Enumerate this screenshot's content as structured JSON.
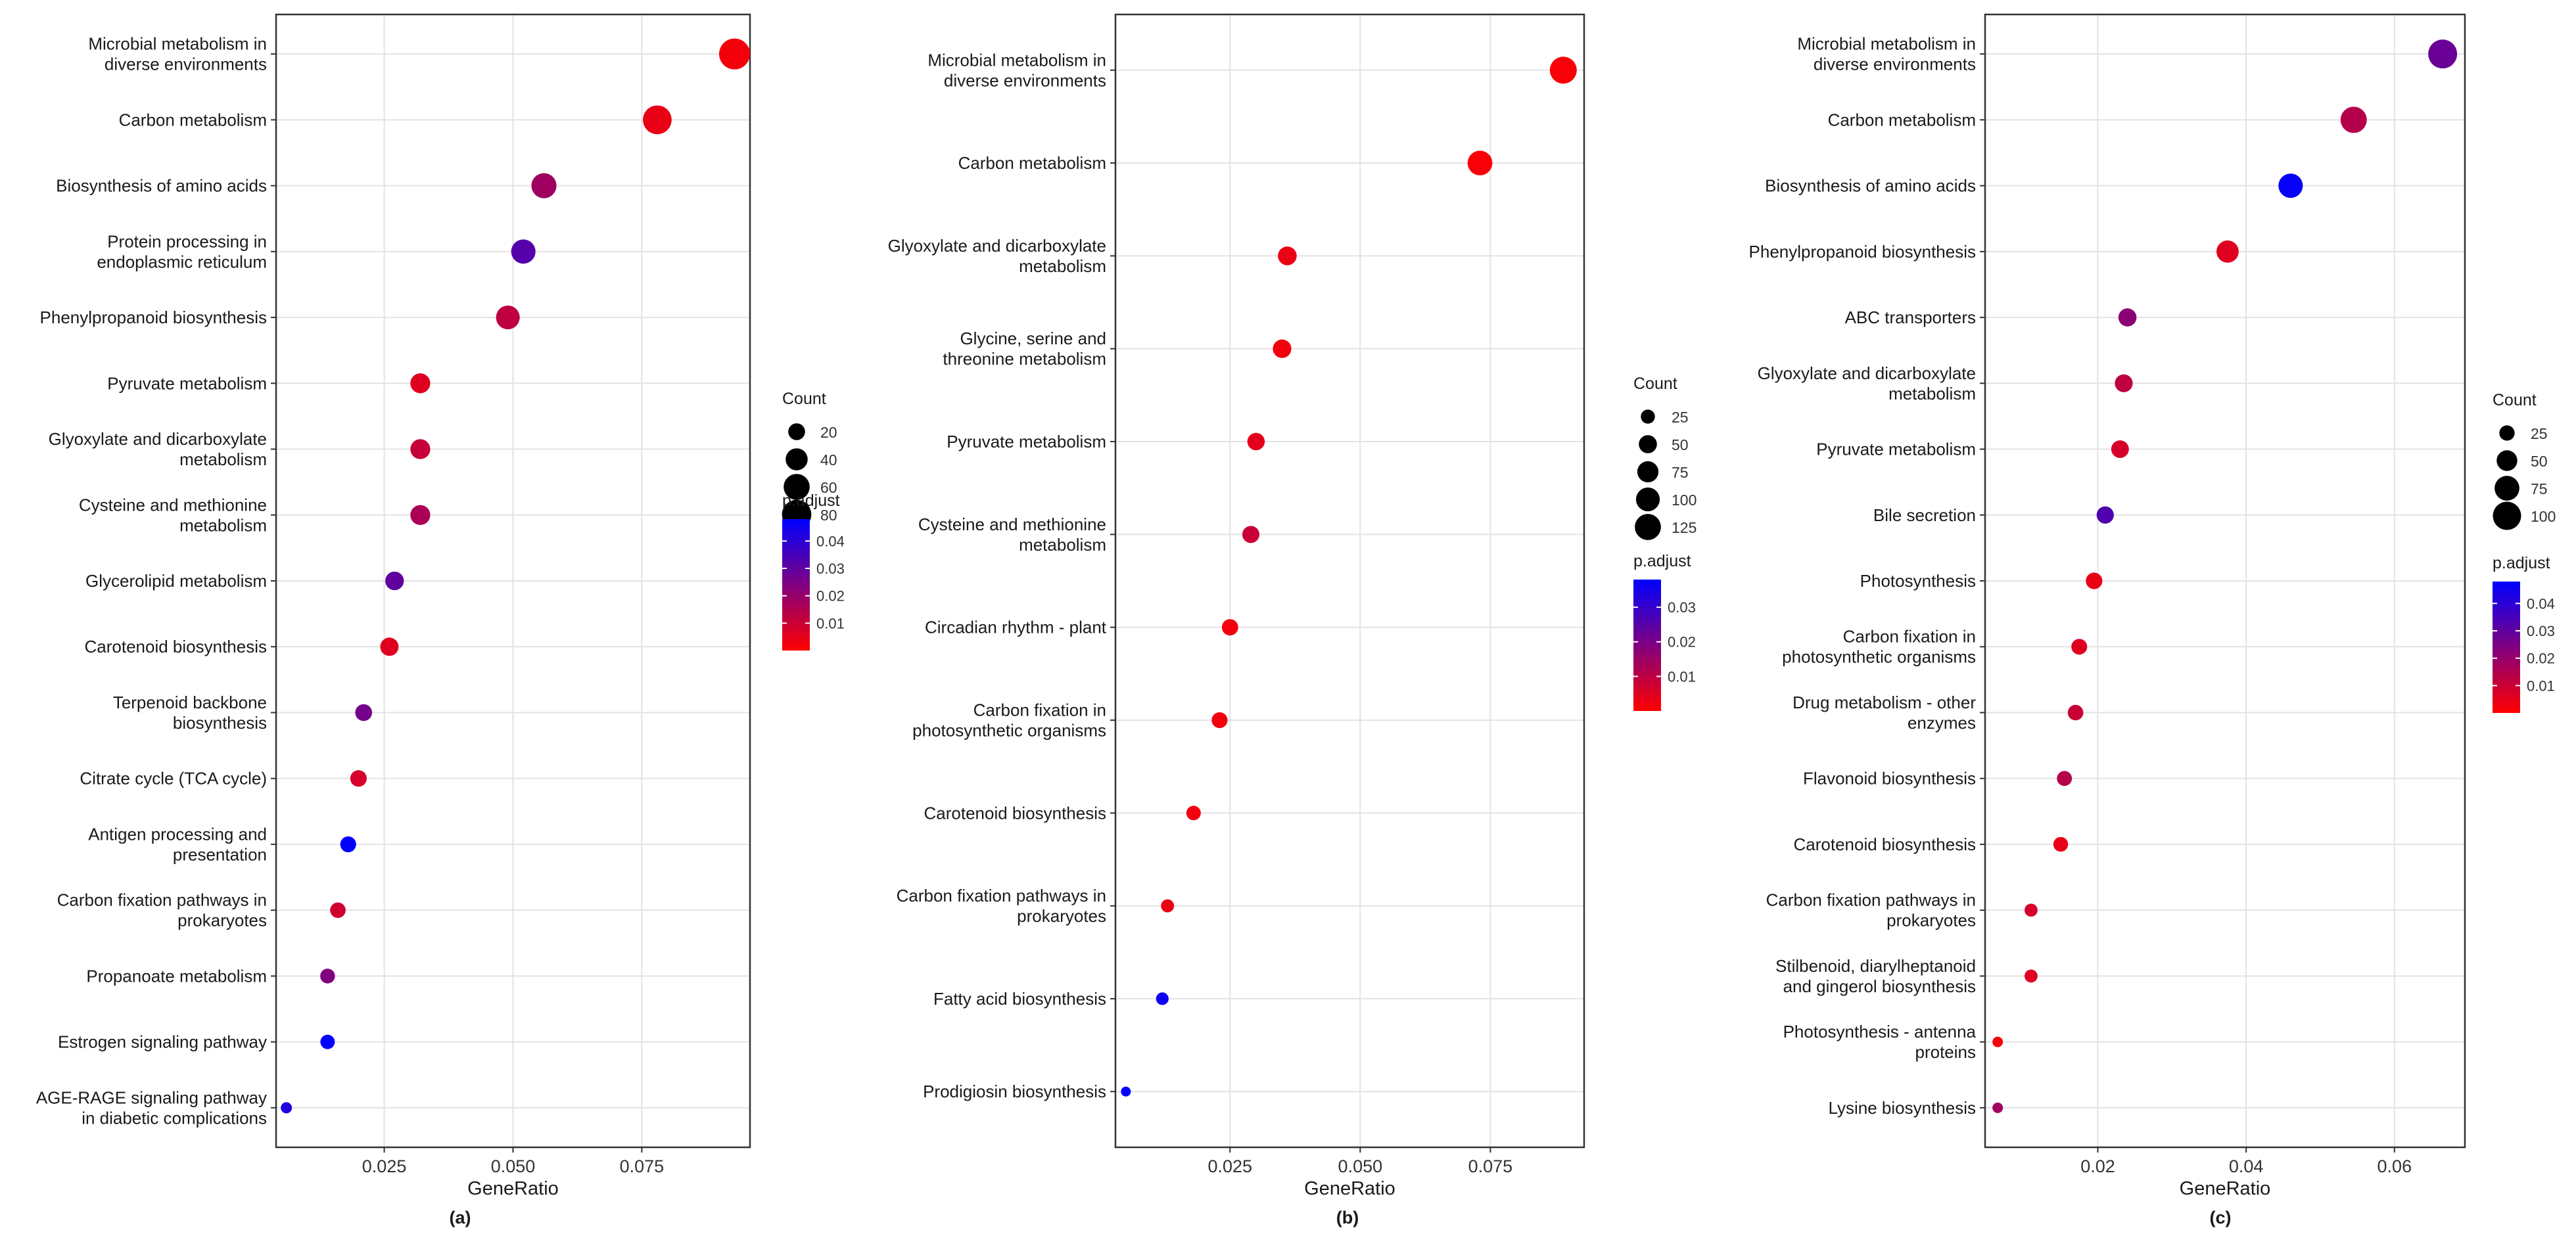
{
  "chart_data": [
    {
      "type": "scatter",
      "panel_label": "(a)",
      "xlabel": "GeneRatio",
      "ylabel": "",
      "xlim": [
        0.004,
        0.096
      ],
      "xticks": [
        0.025,
        0.05,
        0.075
      ],
      "xtick_labels": [
        "0.025",
        "0.050",
        "0.075"
      ],
      "categories": [
        "Microbial metabolism in\ndiverse environments",
        "Carbon metabolism",
        "Biosynthesis of amino acids",
        "Protein processing in\nendoplasmic reticulum",
        "Phenylpropanoid biosynthesis",
        "Pyruvate metabolism",
        "Glyoxylate and dicarboxylate\nmetabolism",
        "Cysteine and methionine\nmetabolism",
        "Glycerolipid metabolism",
        "Carotenoid biosynthesis",
        "Terpenoid backbone\nbiosynthesis",
        "Citrate cycle (TCA cycle)",
        "Antigen processing and\npresentation",
        "Carbon fixation pathways in\nprokaryotes",
        "Propanoate metabolism",
        "Estrogen signaling pathway",
        "AGE-RAGE signaling pathway\nin diabetic complications"
      ],
      "gene_ratio": [
        0.093,
        0.078,
        0.056,
        0.052,
        0.049,
        0.032,
        0.032,
        0.032,
        0.027,
        0.026,
        0.021,
        0.02,
        0.018,
        0.016,
        0.014,
        0.014,
        0.006
      ],
      "count": [
        90,
        76,
        55,
        51,
        48,
        31,
        31,
        31,
        26,
        25,
        20,
        19,
        17,
        16,
        14,
        13,
        6
      ],
      "p_adjust": [
        0.002,
        0.004,
        0.018,
        0.032,
        0.012,
        0.006,
        0.011,
        0.016,
        0.03,
        0.006,
        0.026,
        0.008,
        0.048,
        0.009,
        0.024,
        0.048,
        0.042
      ],
      "size_legend": {
        "title": "Count",
        "values": [
          20,
          40,
          60,
          80
        ],
        "labels": [
          "20",
          "40",
          "60",
          "80"
        ]
      },
      "color_legend": {
        "title": "p.adjust",
        "min": 0.0,
        "max": 0.048,
        "ticks": [
          0.01,
          0.02,
          0.03,
          0.04
        ],
        "tick_labels": [
          "0.01",
          "0.02",
          "0.03",
          "0.04"
        ],
        "low_color": "#ff0000",
        "high_color": "#0000ff"
      }
    },
    {
      "type": "scatter",
      "panel_label": "(b)",
      "xlabel": "GeneRatio",
      "ylabel": "",
      "xlim": [
        0.003,
        0.093
      ],
      "xticks": [
        0.025,
        0.05,
        0.075
      ],
      "xtick_labels": [
        "0.025",
        "0.050",
        "0.075"
      ],
      "categories": [
        "Microbial metabolism in\ndiverse environments",
        "Carbon metabolism",
        "Glyoxylate and dicarboxylate\nmetabolism",
        "Glycine, serine and\nthreonine metabolism",
        "Pyruvate metabolism",
        "Cysteine and methionine\nmetabolism",
        "Circadian rhythm - plant",
        "Carbon fixation in\nphotosynthetic organisms",
        "Carotenoid biosynthesis",
        "Carbon fixation pathways in\nprokaryotes",
        "Fatty acid biosynthesis",
        "Prodigiosin biosynthesis"
      ],
      "gene_ratio": [
        0.089,
        0.073,
        0.036,
        0.035,
        0.03,
        0.029,
        0.025,
        0.023,
        0.018,
        0.013,
        0.012,
        0.005
      ],
      "count": [
        135,
        110,
        55,
        53,
        45,
        43,
        38,
        35,
        27,
        20,
        18,
        8
      ],
      "p_adjust": [
        0.001,
        0.001,
        0.003,
        0.002,
        0.004,
        0.008,
        0.002,
        0.002,
        0.002,
        0.003,
        0.036,
        0.037
      ],
      "size_legend": {
        "title": "Count",
        "values": [
          25,
          50,
          75,
          100,
          125
        ],
        "labels": [
          "25",
          "50",
          "75",
          "100",
          "125"
        ]
      },
      "color_legend": {
        "title": "p.adjust",
        "min": 0.0,
        "max": 0.038,
        "ticks": [
          0.01,
          0.02,
          0.03
        ],
        "tick_labels": [
          "0.01",
          "0.02",
          "0.03"
        ],
        "low_color": "#ff0000",
        "high_color": "#0000ff"
      }
    },
    {
      "type": "scatter",
      "panel_label": "(c)",
      "xlabel": "GeneRatio",
      "ylabel": "",
      "xlim": [
        0.0048,
        0.0695
      ],
      "xticks": [
        0.02,
        0.04,
        0.06
      ],
      "xtick_labels": [
        "0.02",
        "0.04",
        "0.06"
      ],
      "categories": [
        "Microbial metabolism in\ndiverse environments",
        "Carbon metabolism",
        "Biosynthesis of amino acids",
        "Phenylpropanoid biosynthesis",
        "ABC transporters",
        "Glyoxylate and dicarboxylate\nmetabolism",
        "Pyruvate metabolism",
        "Bile secretion",
        "Photosynthesis",
        "Carbon fixation in\nphotosynthetic organisms",
        "Drug metabolism - other\nenzymes",
        "Flavonoid biosynthesis",
        "Carotenoid biosynthesis",
        "Carbon fixation pathways in\nprokaryotes",
        "Stilbenoid, diarylheptanoid\nand gingerol biosynthesis",
        "Photosynthesis - antenna\nproteins",
        "Lysine biosynthesis"
      ],
      "gene_ratio": [
        0.0665,
        0.0545,
        0.046,
        0.0375,
        0.024,
        0.0235,
        0.023,
        0.021,
        0.0195,
        0.0175,
        0.017,
        0.0155,
        0.015,
        0.011,
        0.011,
        0.0065,
        0.0065
      ],
      "count": [
        105,
        85,
        72,
        59,
        37,
        36,
        35,
        33,
        30,
        27,
        26,
        24,
        23,
        17,
        17,
        10,
        10
      ],
      "p_adjust": [
        0.028,
        0.014,
        0.047,
        0.006,
        0.022,
        0.012,
        0.008,
        0.033,
        0.004,
        0.006,
        0.01,
        0.014,
        0.004,
        0.008,
        0.006,
        0.002,
        0.018
      ],
      "size_legend": {
        "title": "Count",
        "values": [
          25,
          50,
          75,
          100
        ],
        "labels": [
          "25",
          "50",
          "75",
          "100"
        ]
      },
      "color_legend": {
        "title": "p.adjust",
        "min": 0.0,
        "max": 0.048,
        "ticks": [
          0.01,
          0.02,
          0.03,
          0.04
        ],
        "tick_labels": [
          "0.01",
          "0.02",
          "0.03",
          "0.04"
        ],
        "low_color": "#ff0000",
        "high_color": "#0000ff"
      }
    }
  ]
}
